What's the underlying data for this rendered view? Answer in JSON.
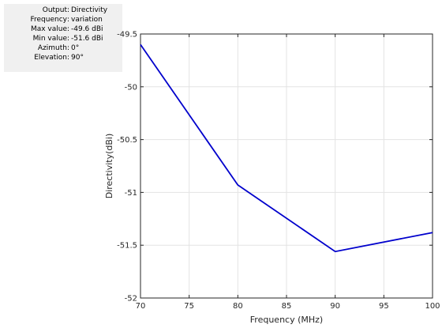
{
  "info_panel": {
    "rows": [
      {
        "key": "Output",
        "value": "Directivity"
      },
      {
        "key": "Frequency",
        "value": "variation"
      },
      {
        "key": "Max value",
        "value": "-49.6 dBi"
      },
      {
        "key": "Min value",
        "value": "-51.6 dBi"
      },
      {
        "key": "Azimuth",
        "value": "0°"
      },
      {
        "key": "Elevation",
        "value": "90°"
      }
    ]
  },
  "chart_data": {
    "type": "line",
    "title": "",
    "xlabel": "Frequency (MHz)",
    "ylabel": "Directivity(dBi)",
    "xlim": [
      70,
      100
    ],
    "ylim": [
      -52,
      -49.5
    ],
    "x_ticks": [
      70,
      75,
      80,
      85,
      90,
      95,
      100
    ],
    "y_ticks": [
      -52,
      -51.5,
      -51,
      -50.5,
      -50,
      -49.5
    ],
    "y_tick_labels": [
      "-52",
      "-51.5",
      "-51",
      "-50.5",
      "-50",
      "-49.5"
    ],
    "grid": true,
    "series": [
      {
        "x": [
          70,
          80,
          90,
          100
        ],
        "y": [
          -49.6,
          -50.93,
          -51.56,
          -51.38
        ],
        "color": "#0000cc"
      }
    ]
  }
}
